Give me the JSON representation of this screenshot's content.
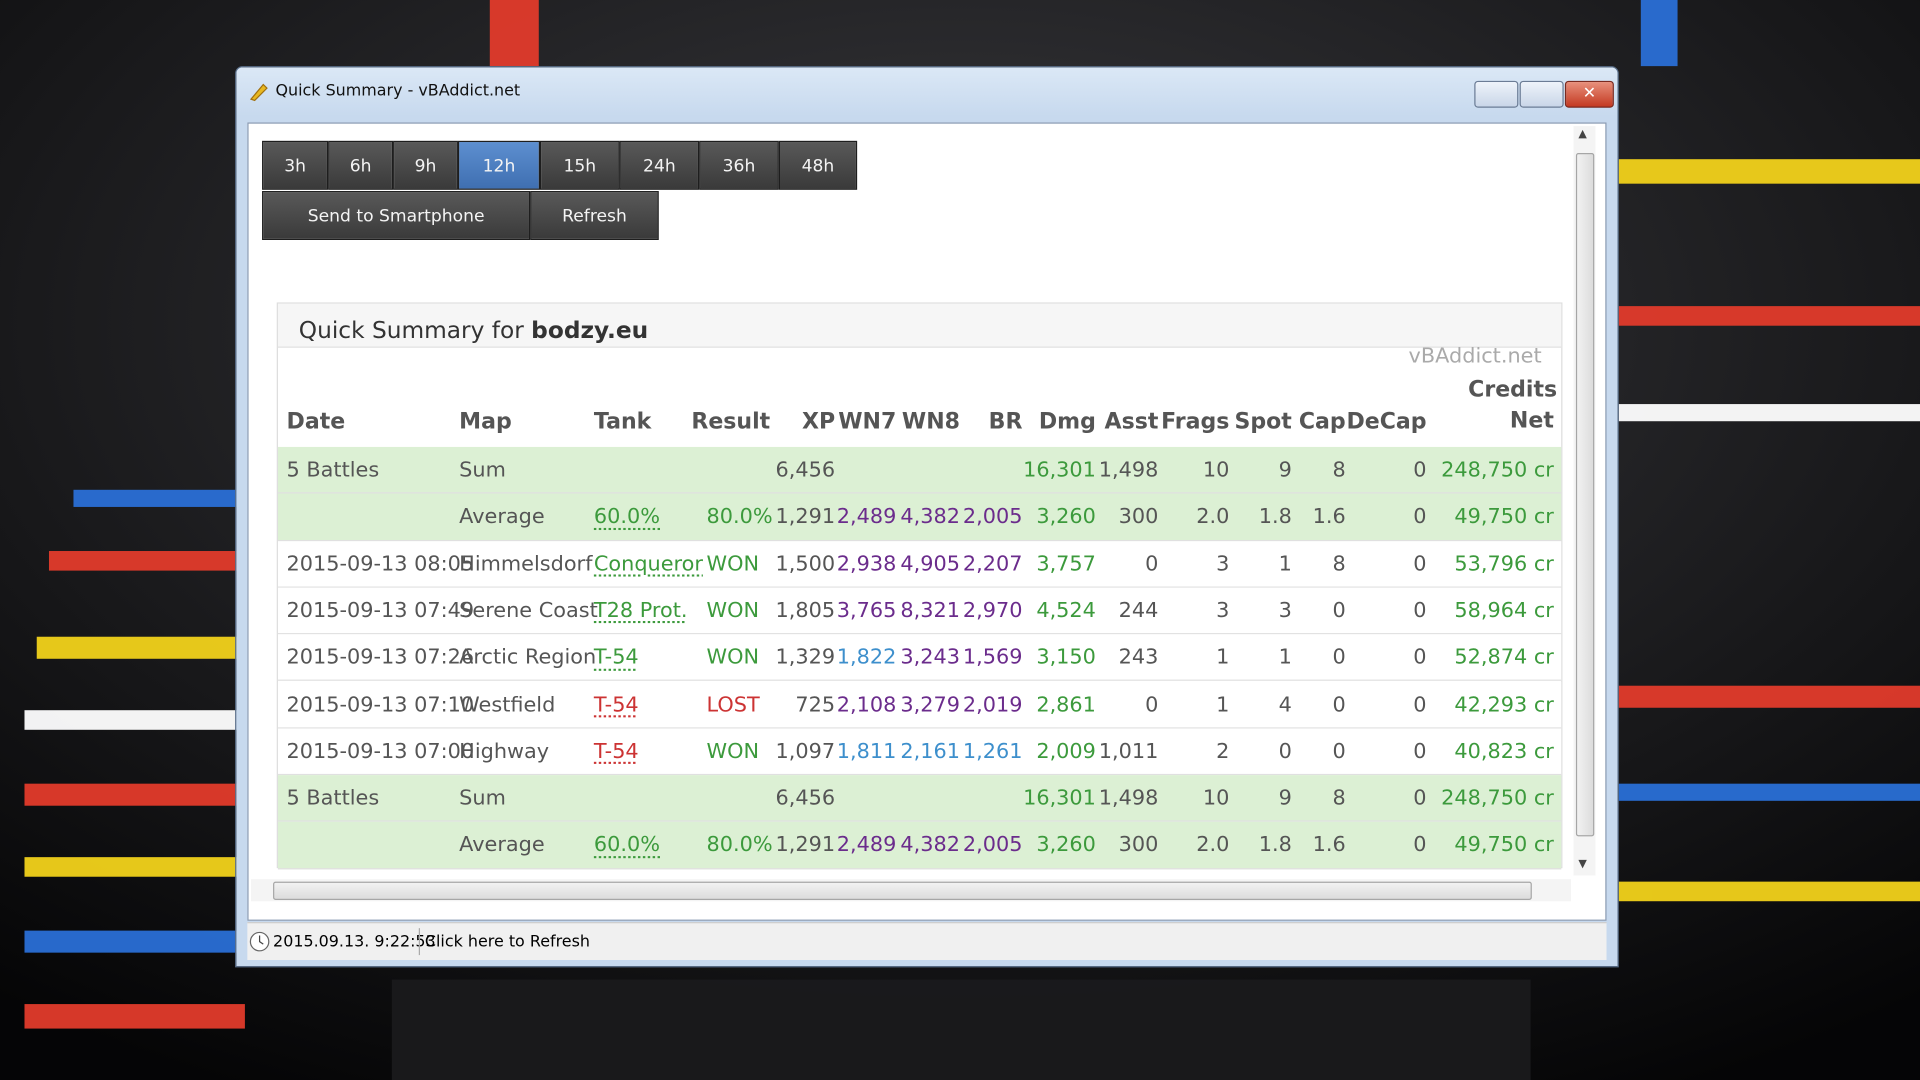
{
  "window": {
    "title": "Quick Summary - vBAddict.net"
  },
  "period_buttons": [
    "3h",
    "6h",
    "9h",
    "12h",
    "15h",
    "24h",
    "36h",
    "48h"
  ],
  "action_buttons": [
    "Send to Smartphone",
    "Refresh"
  ],
  "summary": {
    "heading": "Quick Summary for",
    "player": "bodzy.eu",
    "brand": "vBAddict.net"
  },
  "table": {
    "columns": [
      "Date",
      "Map",
      "Tank",
      "Result",
      "XP",
      "WN7",
      "WN8",
      "BR",
      "Dmg",
      "Asst",
      "Frags",
      "Spot",
      "Cap",
      "DeCap",
      "Credits Net"
    ],
    "rows": [
      {
        "summary": true,
        "cells": [
          "5 Battles",
          "Sum",
          null,
          null,
          "6,456",
          null,
          null,
          null,
          "16,301",
          "1,498",
          "10",
          "9",
          "8",
          "0",
          "248,750 cr"
        ],
        "colors": [
          "#555555",
          "#555555",
          "#555555",
          "#555555",
          "#555555",
          "#555555",
          "#555555",
          "#555555",
          "#3c9a3c",
          "#555555",
          "#555555",
          "#555555",
          "#555555",
          "#555555",
          "#3c9a3c"
        ]
      },
      {
        "summary": true,
        "cells": [
          null,
          "Average",
          "60.0%",
          "80.0%",
          "1,291",
          "2,489",
          "4,382",
          "2,005",
          "3,260",
          "300",
          "2.0",
          "1.8",
          "1.6",
          "0",
          "49,750 cr"
        ],
        "colors": [
          "#555555",
          "#555555",
          "#3c9a3c",
          "#3c9a3c",
          "#555555",
          "#6b2c8c",
          "#6b2c8c",
          "#6b2c8c",
          "#3c9a3c",
          "#555555",
          "#555555",
          "#555555",
          "#555555",
          "#555555",
          "#3c9a3c"
        ]
      },
      {
        "summary": false,
        "cells": [
          "2015-09-13 08:05",
          "Himmelsdorf",
          "Conqueror",
          "WON",
          "1,500",
          "2,938",
          "4,905",
          "2,207",
          "3,757",
          "0",
          "3",
          "1",
          "8",
          "0",
          "53,796 cr"
        ],
        "colors": [
          "#555555",
          "#555555",
          "#3c9a3c",
          "#3c9a3c",
          "#555555",
          "#6b2c8c",
          "#6b2c8c",
          "#6b2c8c",
          "#3c9a3c",
          "#555555",
          "#555555",
          "#555555",
          "#555555",
          "#555555",
          "#3c9a3c"
        ]
      },
      {
        "summary": false,
        "cells": [
          "2015-09-13 07:49",
          "Serene Coast",
          "T28 Prot.",
          "WON",
          "1,805",
          "3,765",
          "8,321",
          "2,970",
          "4,524",
          "244",
          "3",
          "3",
          "0",
          "0",
          "58,964 cr"
        ],
        "colors": [
          "#555555",
          "#555555",
          "#3c9a3c",
          "#3c9a3c",
          "#555555",
          "#6b2c8c",
          "#6b2c8c",
          "#6b2c8c",
          "#3c9a3c",
          "#555555",
          "#555555",
          "#555555",
          "#555555",
          "#555555",
          "#3c9a3c"
        ]
      },
      {
        "summary": false,
        "cells": [
          "2015-09-13 07:26",
          "Arctic Region",
          "T-54",
          "WON",
          "1,329",
          "1,822",
          "3,243",
          "1,569",
          "3,150",
          "243",
          "1",
          "1",
          "0",
          "0",
          "52,874 cr"
        ],
        "colors": [
          "#555555",
          "#555555",
          "#3c9a3c",
          "#3c9a3c",
          "#555555",
          "#3d8fcc",
          "#6b2c8c",
          "#6b2c8c",
          "#3c9a3c",
          "#555555",
          "#555555",
          "#555555",
          "#555555",
          "#555555",
          "#3c9a3c"
        ]
      },
      {
        "summary": false,
        "cells": [
          "2015-09-13 07:10",
          "Westfield",
          "T-54",
          "LOST",
          "725",
          "2,108",
          "3,279",
          "2,019",
          "2,861",
          "0",
          "1",
          "4",
          "0",
          "0",
          "42,293 cr"
        ],
        "colors": [
          "#555555",
          "#555555",
          "#cc3333",
          "#cc3333",
          "#555555",
          "#6b2c8c",
          "#6b2c8c",
          "#6b2c8c",
          "#3c9a3c",
          "#555555",
          "#555555",
          "#555555",
          "#555555",
          "#555555",
          "#3c9a3c"
        ]
      },
      {
        "summary": false,
        "cells": [
          "2015-09-13 07:00",
          "Highway",
          "T-54",
          "WON",
          "1,097",
          "1,811",
          "2,161",
          "1,261",
          "2,009",
          "1,011",
          "2",
          "0",
          "0",
          "0",
          "40,823 cr"
        ],
        "colors": [
          "#555555",
          "#555555",
          "#cc3333",
          "#3c9a3c",
          "#555555",
          "#3d8fcc",
          "#3d8fcc",
          "#3d8fcc",
          "#3c9a3c",
          "#555555",
          "#555555",
          "#555555",
          "#555555",
          "#555555",
          "#3c9a3c"
        ]
      },
      {
        "summary": true,
        "cells": [
          "5 Battles",
          "Sum",
          null,
          null,
          "6,456",
          null,
          null,
          null,
          "16,301",
          "1,498",
          "10",
          "9",
          "8",
          "0",
          "248,750 cr"
        ],
        "colors": [
          "#555555",
          "#555555",
          "#555555",
          "#555555",
          "#555555",
          "#555555",
          "#555555",
          "#555555",
          "#3c9a3c",
          "#555555",
          "#555555",
          "#555555",
          "#555555",
          "#555555",
          "#3c9a3c"
        ]
      },
      {
        "summary": true,
        "cells": [
          null,
          "Average",
          "60.0%",
          "80.0%",
          "1,291",
          "2,489",
          "4,382",
          "2,005",
          "3,260",
          "300",
          "2.0",
          "1.8",
          "1.6",
          "0",
          "49,750 cr"
        ],
        "colors": [
          "#555555",
          "#555555",
          "#3c9a3c",
          "#3c9a3c",
          "#555555",
          "#6b2c8c",
          "#6b2c8c",
          "#6b2c8c",
          "#3c9a3c",
          "#555555",
          "#555555",
          "#555555",
          "#555555",
          "#555555",
          "#3c9a3c"
        ]
      }
    ]
  },
  "status": {
    "time": "2015.09.13. 9:22:53",
    "refresh": "Click here to Refresh"
  }
}
